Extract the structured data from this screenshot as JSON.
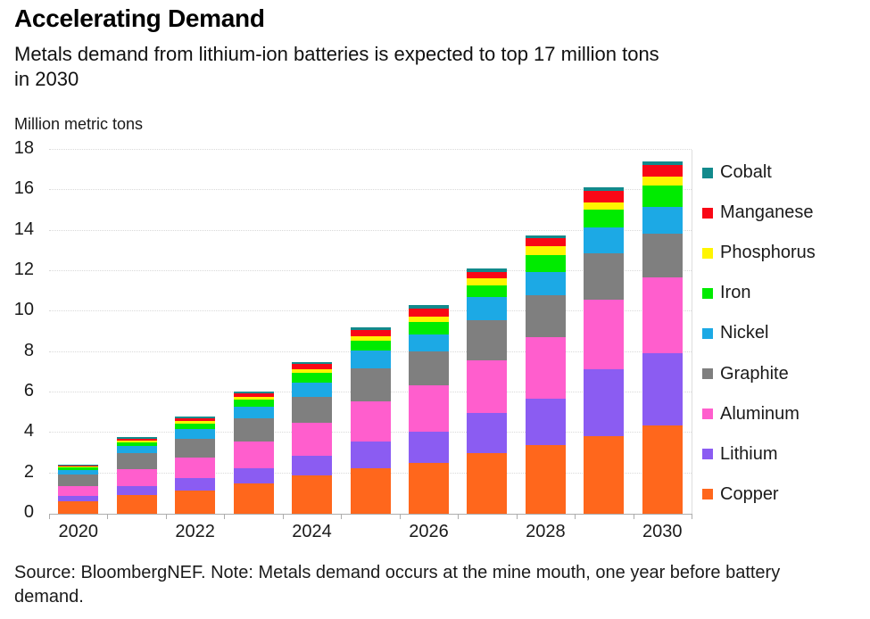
{
  "header": {
    "title": "Accelerating Demand",
    "subtitle": "Metals demand from lithium-ion batteries is expected to top 17 million tons\nin 2030"
  },
  "chart_data": {
    "type": "bar",
    "stacked": true,
    "title": "Accelerating Demand",
    "xlabel": "",
    "ylabel": "Million metric tons",
    "ylim": [
      0,
      18
    ],
    "y_ticks": [
      0,
      2,
      4,
      6,
      8,
      10,
      12,
      14,
      16,
      18
    ],
    "grid": "horizontal-dotted",
    "legend_position": "right",
    "categories": [
      "2020",
      "2021",
      "2022",
      "2023",
      "2024",
      "2025",
      "2026",
      "2027",
      "2028",
      "2029",
      "2030"
    ],
    "x_tick_labels": [
      "2020",
      "2022",
      "2024",
      "2026",
      "2028",
      "2030"
    ],
    "series": [
      {
        "name": "Copper",
        "color": "#FF671C",
        "values": [
          0.62,
          0.93,
          1.14,
          1.51,
          1.88,
          2.25,
          2.51,
          2.98,
          3.4,
          3.85,
          4.35
        ]
      },
      {
        "name": "Lithium",
        "color": "#8B5CF2",
        "values": [
          0.27,
          0.44,
          0.63,
          0.74,
          0.99,
          1.33,
          1.54,
          2.0,
          2.3,
          3.3,
          3.6
        ]
      },
      {
        "name": "Aluminum",
        "color": "#FF5ECD",
        "values": [
          0.47,
          0.85,
          0.99,
          1.33,
          1.62,
          1.99,
          2.31,
          2.59,
          3.03,
          3.45,
          3.75
        ]
      },
      {
        "name": "Graphite",
        "color": "#7F7F7F",
        "values": [
          0.59,
          0.77,
          0.96,
          1.15,
          1.3,
          1.63,
          1.68,
          1.99,
          2.07,
          2.29,
          2.15
        ]
      },
      {
        "name": "Nickel",
        "color": "#1CA9E5",
        "values": [
          0.21,
          0.35,
          0.47,
          0.55,
          0.71,
          0.89,
          0.83,
          1.18,
          1.18,
          1.29,
          1.35
        ]
      },
      {
        "name": "Iron",
        "color": "#00EB00",
        "values": [
          0.13,
          0.2,
          0.29,
          0.37,
          0.47,
          0.45,
          0.62,
          0.55,
          0.81,
          0.86,
          1.05
        ]
      },
      {
        "name": "Phosphorus",
        "color": "#FFF500",
        "values": [
          0.03,
          0.08,
          0.12,
          0.15,
          0.2,
          0.25,
          0.27,
          0.34,
          0.44,
          0.37,
          0.45
        ]
      },
      {
        "name": "Manganese",
        "color": "#F90716",
        "values": [
          0.05,
          0.08,
          0.12,
          0.14,
          0.25,
          0.3,
          0.39,
          0.34,
          0.4,
          0.55,
          0.55
        ]
      },
      {
        "name": "Cobalt",
        "color": "#128A8C",
        "values": [
          0.08,
          0.08,
          0.08,
          0.12,
          0.1,
          0.13,
          0.16,
          0.18,
          0.12,
          0.19,
          0.2
        ]
      }
    ],
    "totals": [
      2.45,
      3.78,
      4.8,
      6.06,
      7.52,
      9.22,
      10.31,
      12.15,
      13.75,
      16.15,
      17.45
    ]
  },
  "footer": {
    "source_note": "Source: BloombergNEF. Note: Metals demand occurs at the mine mouth, one year before battery\ndemand."
  }
}
